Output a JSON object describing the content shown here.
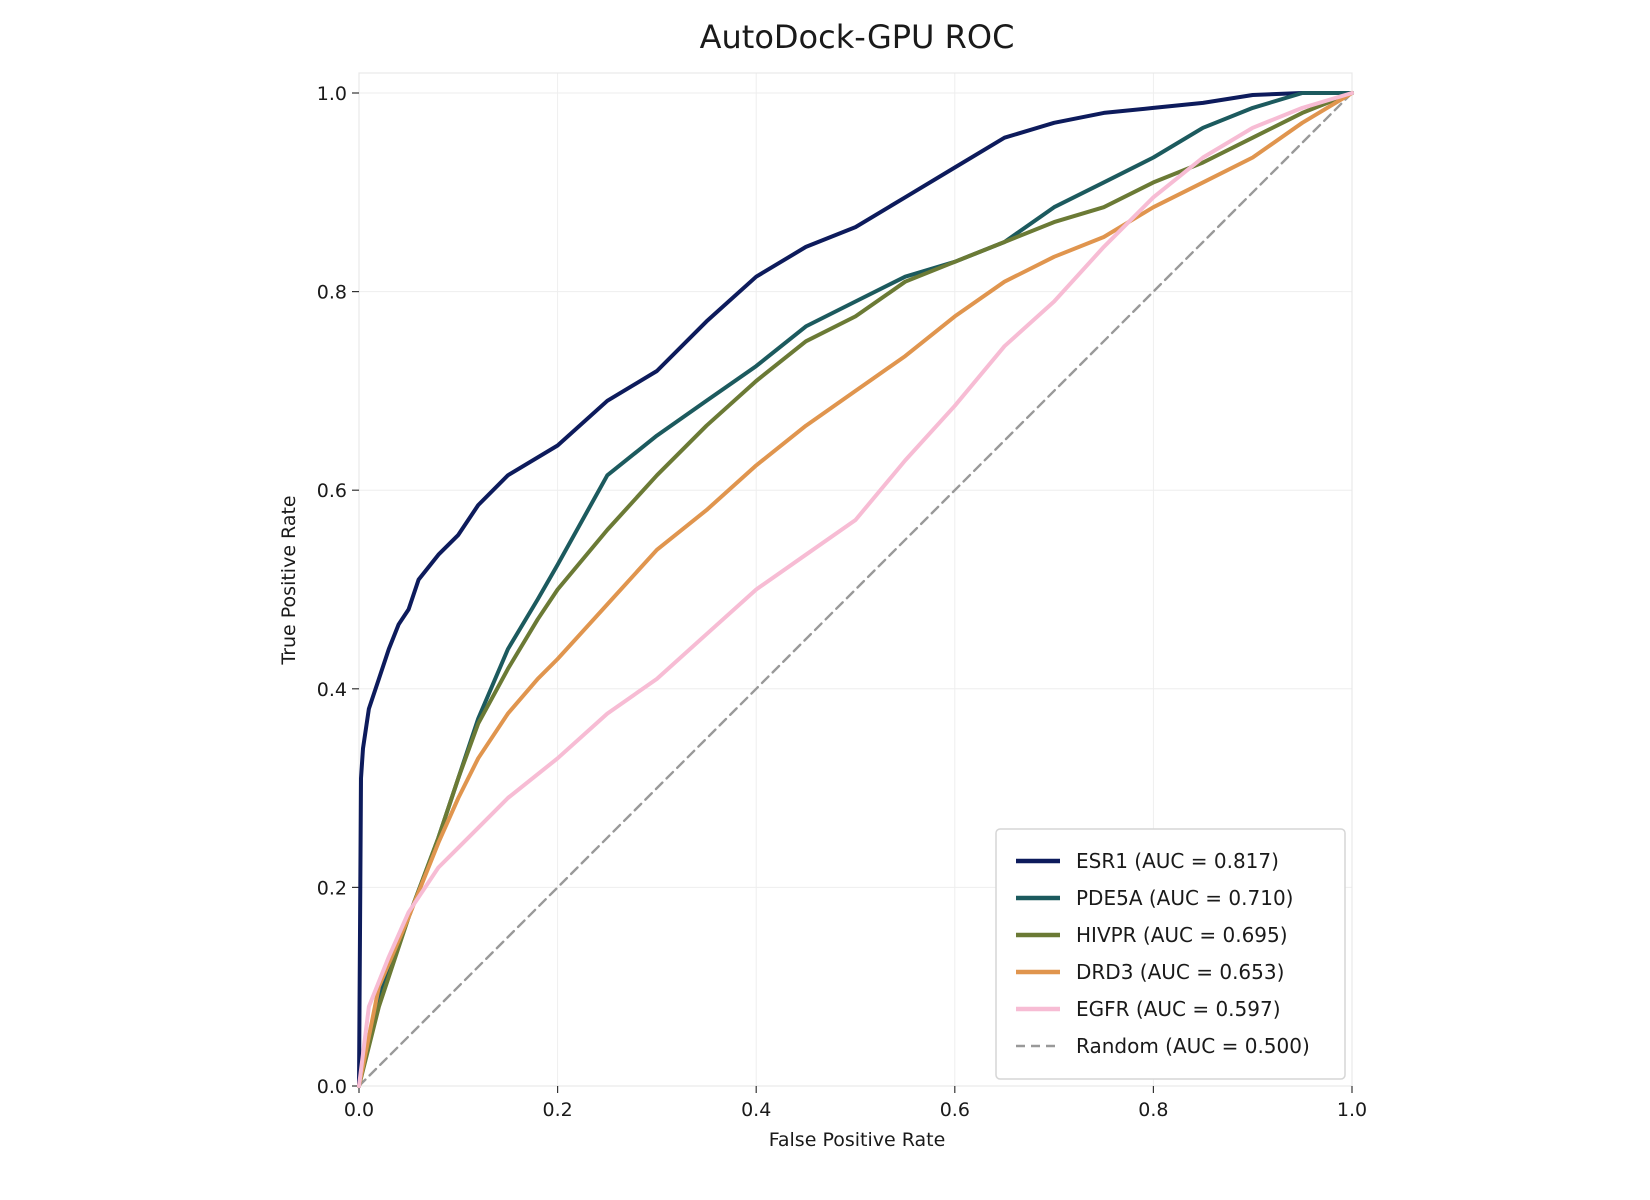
{
  "chart_data": {
    "type": "line",
    "title": "AutoDock-GPU ROC",
    "xlabel": "False Positive Rate",
    "ylabel": "True Positive Rate",
    "xlim": [
      0,
      1
    ],
    "ylim": [
      0,
      1
    ],
    "x_ticks": [
      "0.0",
      "0.2",
      "0.4",
      "0.6",
      "0.8",
      "1.0"
    ],
    "y_ticks": [
      "0.0",
      "0.2",
      "0.4",
      "0.6",
      "0.8",
      "1.0"
    ],
    "grid": true,
    "legend_position": "bottom-right",
    "series": [
      {
        "name": "ESR1 (AUC = 0.817)",
        "color": "#0d1b5c",
        "x": [
          0,
          0.002,
          0.004,
          0.01,
          0.02,
          0.03,
          0.04,
          0.05,
          0.06,
          0.08,
          0.1,
          0.12,
          0.15,
          0.2,
          0.25,
          0.3,
          0.35,
          0.4,
          0.45,
          0.5,
          0.55,
          0.6,
          0.65,
          0.7,
          0.75,
          0.8,
          0.85,
          0.9,
          0.95,
          1.0
        ],
        "y": [
          0,
          0.31,
          0.34,
          0.38,
          0.41,
          0.44,
          0.465,
          0.48,
          0.51,
          0.535,
          0.555,
          0.585,
          0.615,
          0.645,
          0.69,
          0.72,
          0.77,
          0.815,
          0.845,
          0.865,
          0.895,
          0.925,
          0.955,
          0.97,
          0.98,
          0.985,
          0.99,
          0.998,
          1.0,
          1.0
        ]
      },
      {
        "name": "PDE5A (AUC = 0.710)",
        "color": "#1c5a5e",
        "x": [
          0,
          0.02,
          0.05,
          0.08,
          0.1,
          0.12,
          0.15,
          0.18,
          0.2,
          0.25,
          0.3,
          0.35,
          0.4,
          0.45,
          0.5,
          0.55,
          0.6,
          0.65,
          0.7,
          0.75,
          0.8,
          0.85,
          0.9,
          0.95,
          1.0
        ],
        "y": [
          0,
          0.09,
          0.17,
          0.25,
          0.31,
          0.37,
          0.44,
          0.49,
          0.525,
          0.615,
          0.655,
          0.69,
          0.725,
          0.765,
          0.79,
          0.815,
          0.83,
          0.85,
          0.885,
          0.91,
          0.935,
          0.965,
          0.985,
          1.0,
          1.0
        ]
      },
      {
        "name": "HIVPR (AUC = 0.695)",
        "color": "#6b7a35",
        "x": [
          0,
          0.02,
          0.05,
          0.08,
          0.1,
          0.12,
          0.15,
          0.18,
          0.2,
          0.25,
          0.3,
          0.35,
          0.4,
          0.45,
          0.5,
          0.55,
          0.6,
          0.65,
          0.7,
          0.75,
          0.8,
          0.85,
          0.9,
          0.95,
          1.0
        ],
        "y": [
          0,
          0.08,
          0.17,
          0.25,
          0.31,
          0.365,
          0.42,
          0.47,
          0.5,
          0.56,
          0.615,
          0.665,
          0.71,
          0.75,
          0.775,
          0.81,
          0.83,
          0.85,
          0.87,
          0.885,
          0.91,
          0.93,
          0.955,
          0.98,
          1.0
        ]
      },
      {
        "name": "DRD3 (AUC = 0.653)",
        "color": "#e0954e",
        "x": [
          0,
          0.02,
          0.05,
          0.08,
          0.1,
          0.12,
          0.15,
          0.18,
          0.2,
          0.25,
          0.3,
          0.35,
          0.4,
          0.45,
          0.5,
          0.55,
          0.6,
          0.65,
          0.7,
          0.75,
          0.8,
          0.85,
          0.9,
          0.95,
          1.0
        ],
        "y": [
          0,
          0.1,
          0.17,
          0.245,
          0.29,
          0.33,
          0.375,
          0.41,
          0.43,
          0.485,
          0.54,
          0.58,
          0.625,
          0.665,
          0.7,
          0.735,
          0.775,
          0.81,
          0.835,
          0.855,
          0.885,
          0.91,
          0.935,
          0.97,
          1.0
        ]
      },
      {
        "name": "EGFR (AUC = 0.597)",
        "color": "#f7bcd4",
        "x": [
          0,
          0.01,
          0.03,
          0.05,
          0.08,
          0.1,
          0.12,
          0.15,
          0.2,
          0.25,
          0.3,
          0.35,
          0.4,
          0.45,
          0.5,
          0.55,
          0.6,
          0.65,
          0.7,
          0.75,
          0.8,
          0.85,
          0.9,
          0.95,
          1.0
        ],
        "y": [
          0,
          0.08,
          0.13,
          0.175,
          0.22,
          0.24,
          0.26,
          0.29,
          0.33,
          0.375,
          0.41,
          0.455,
          0.5,
          0.535,
          0.57,
          0.63,
          0.685,
          0.745,
          0.79,
          0.845,
          0.895,
          0.935,
          0.965,
          0.985,
          1.0
        ]
      },
      {
        "name": "Random (AUC = 0.500)",
        "color": "#999999",
        "dashed": true,
        "x": [
          0,
          1
        ],
        "y": [
          0,
          1
        ]
      }
    ]
  }
}
